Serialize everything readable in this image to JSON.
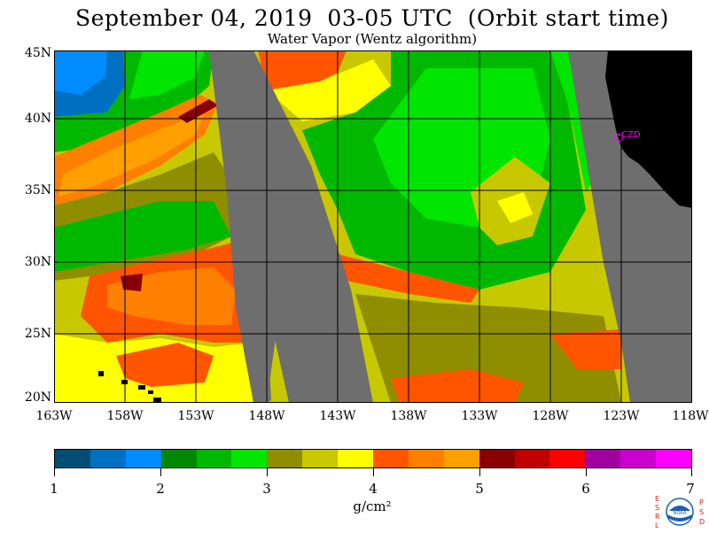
{
  "title": "September 04, 2019  03-05 UTC  (Orbit start time)",
  "subtitle": "Water Vapor (Wentz algorithm)",
  "map": {
    "latitude_labels": [
      "45N",
      "40N",
      "35N",
      "30N",
      "25N",
      "20N"
    ],
    "longitude_labels": [
      "163W",
      "158W",
      "153W",
      "148W",
      "143W",
      "138W",
      "133W",
      "128W",
      "123W",
      "118W"
    ],
    "station_label": "CZD",
    "ocean_gap_color": "#6e6e6e",
    "land_color": "#000000",
    "grid_color": "#000000"
  },
  "colorbar": {
    "colors": [
      "#004e74",
      "#0070c0",
      "#008cff",
      "#008800",
      "#00b800",
      "#00e600",
      "#8e8e00",
      "#c8c800",
      "#ffff00",
      "#ff5500",
      "#ff7f00",
      "#ffa000",
      "#880000",
      "#c00000",
      "#ff0000",
      "#a000a0",
      "#cc00cc",
      "#ff00ff"
    ],
    "labels": [
      "1",
      "2",
      "3",
      "4",
      "5",
      "6",
      "7"
    ],
    "units": "g/cm²"
  },
  "logo": {
    "left_letters": [
      "E",
      "S",
      "R",
      "L"
    ],
    "right_letters": [
      "P",
      "S",
      "D"
    ],
    "emblem_text": "NOAA"
  }
}
